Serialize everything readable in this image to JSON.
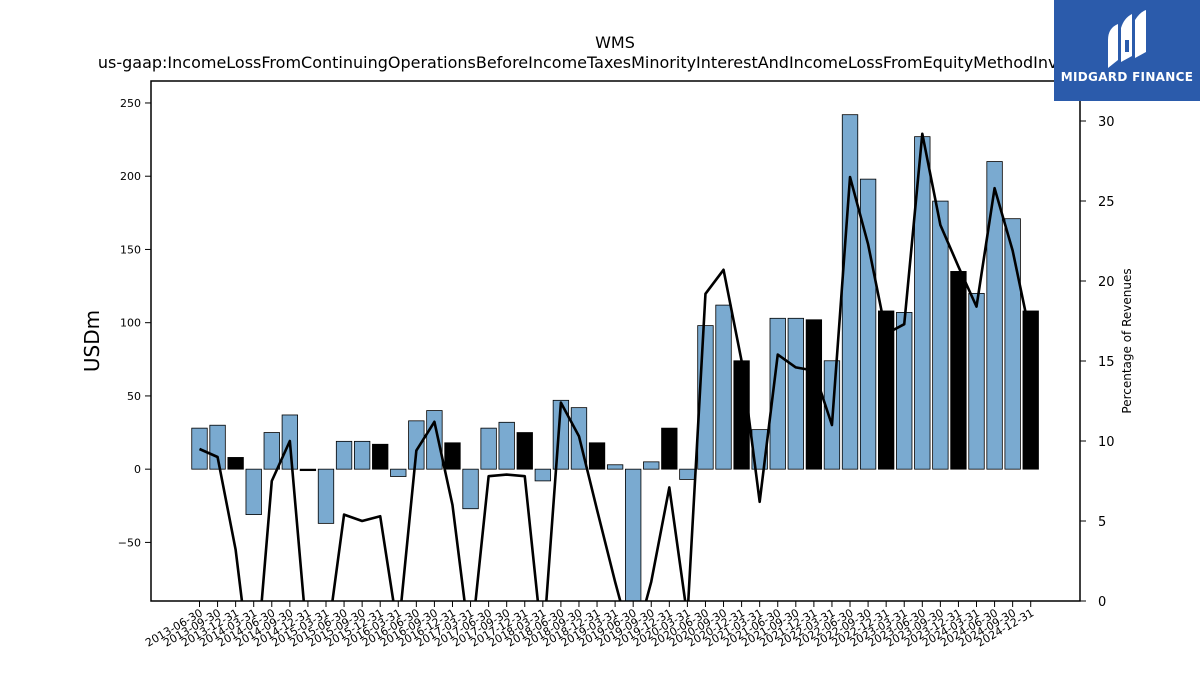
{
  "chart_data": {
    "type": "bar",
    "title": "WMS",
    "subtitle": "us-gaap:IncomeLossFromContinuingOperationsBeforeIncomeTaxesMinorityInterestAndIncomeLossFromEquityMethodInvestments",
    "ylabel": "USDm",
    "y2label": "Percentage of Revenues",
    "ylim": [
      -90,
      265
    ],
    "y2lim": [
      0,
      32.5
    ],
    "yticks": [
      -50,
      0,
      50,
      100,
      150,
      200,
      250
    ],
    "y2ticks": [
      0,
      5,
      10,
      15,
      20,
      25,
      30
    ],
    "categories": [
      "2013-06-30",
      "2013-09-30",
      "2013-12-31",
      "2014-03-31",
      "2014-06-30",
      "2014-09-30",
      "2014-12-31",
      "2015-03-31",
      "2015-06-30",
      "2015-09-30",
      "2015-12-31",
      "2016-03-31",
      "2016-06-30",
      "2016-09-30",
      "2016-12-31",
      "2017-03-31",
      "2017-06-30",
      "2017-09-30",
      "2017-12-31",
      "2018-03-31",
      "2018-06-30",
      "2018-09-30",
      "2018-12-31",
      "2019-03-31",
      "2019-06-30",
      "2019-09-30",
      "2019-12-31",
      "2020-03-31",
      "2020-06-30",
      "2020-09-30",
      "2020-12-31",
      "2021-03-31",
      "2021-06-30",
      "2021-09-30",
      "2021-12-31",
      "2022-03-31",
      "2022-06-30",
      "2022-09-30",
      "2022-12-31",
      "2023-03-31",
      "2023-06-30",
      "2023-09-30",
      "2023-12-31",
      "2024-03-31",
      "2024-06-30",
      "2024-09-30",
      "2024-12-31"
    ],
    "series": [
      {
        "type": "bar",
        "values": [
          28,
          30,
          8,
          -31,
          25,
          37,
          -1,
          -37,
          19,
          19,
          17,
          -5,
          33,
          40,
          18,
          -27,
          28,
          32,
          25,
          -8,
          47,
          42,
          18,
          3,
          -90,
          5,
          28,
          -7,
          98,
          112,
          74,
          27,
          103,
          103,
          102,
          74,
          242,
          198,
          108,
          107,
          227,
          183,
          135,
          120,
          210,
          171,
          108
        ],
        "colors": [
          "#7aaad0",
          "#7aaad0",
          "#000000",
          "#7aaad0",
          "#7aaad0",
          "#7aaad0",
          "#000000",
          "#7aaad0",
          "#7aaad0",
          "#7aaad0",
          "#000000",
          "#7aaad0",
          "#7aaad0",
          "#7aaad0",
          "#000000",
          "#7aaad0",
          "#7aaad0",
          "#7aaad0",
          "#000000",
          "#7aaad0",
          "#7aaad0",
          "#7aaad0",
          "#000000",
          "#7aaad0",
          "#7aaad0",
          "#7aaad0",
          "#000000",
          "#7aaad0",
          "#7aaad0",
          "#7aaad0",
          "#000000",
          "#7aaad0",
          "#7aaad0",
          "#7aaad0",
          "#000000",
          "#7aaad0",
          "#7aaad0",
          "#7aaad0",
          "#000000",
          "#7aaad0",
          "#7aaad0",
          "#7aaad0",
          "#000000",
          "#7aaad0",
          "#7aaad0",
          "#7aaad0",
          "#000000"
        ]
      },
      {
        "type": "line",
        "axis": "right",
        "color": "#000000",
        "values": [
          9.5,
          9.0,
          3.2,
          -6.0,
          7.5,
          10.0,
          -3.0,
          -3.0,
          5.4,
          5.0,
          5.3,
          -2.0,
          9.4,
          11.2,
          6.0,
          -3.0,
          7.8,
          7.9,
          7.8,
          -3.0,
          12.4,
          10.3,
          5.7,
          1.2,
          -3.0,
          1.2,
          7.1,
          -1.0,
          19.2,
          20.7,
          15.0,
          6.2,
          15.4,
          14.6,
          14.4,
          11.0,
          26.5,
          22.3,
          16.7,
          17.3,
          29.2,
          23.5,
          20.9,
          18.4,
          25.8,
          21.9,
          16.5
        ]
      }
    ],
    "grid": false,
    "legend": "none",
    "colors": {
      "positive_bar": "#7aaad0",
      "highlight_bar": "#000000",
      "line": "#000000"
    }
  },
  "logo": {
    "text": "MIDGARD FINANCE",
    "bg_color": "#2b5bab"
  }
}
